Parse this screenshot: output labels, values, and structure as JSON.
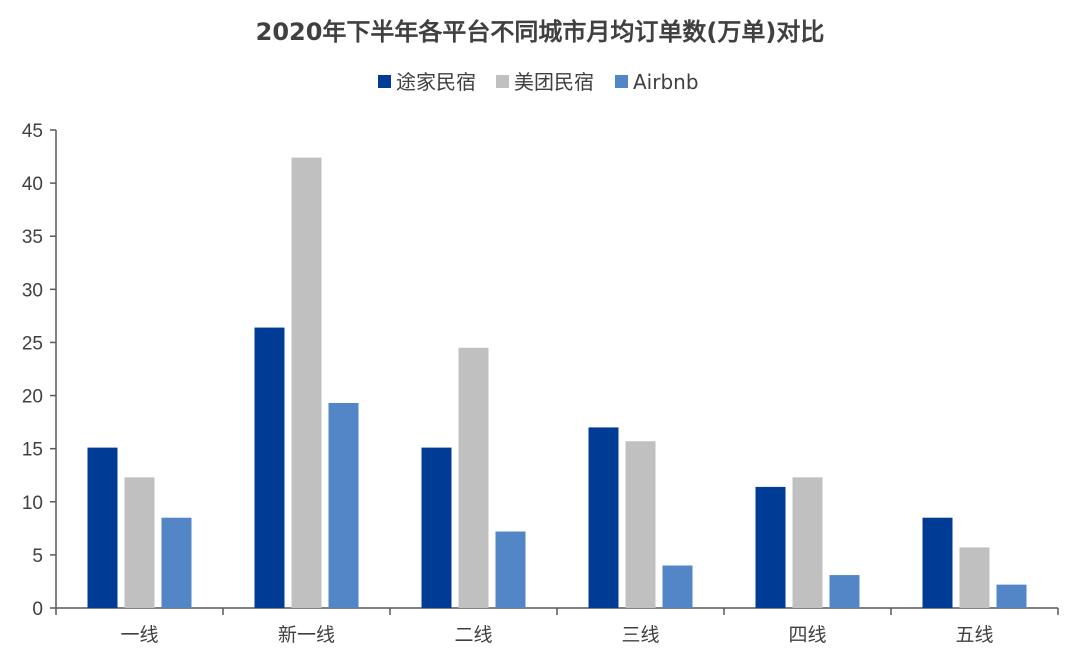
{
  "chart_data": {
    "type": "bar",
    "title": "2020年下半年各平台不同城市月均订单数(万单)对比",
    "xlabel": "",
    "ylabel": "",
    "categories": [
      "一线",
      "新一线",
      "二线",
      "三线",
      "四线",
      "五线"
    ],
    "series": [
      {
        "name": "途家民宿",
        "color": "#003C96",
        "values": [
          15.1,
          26.4,
          15.1,
          17.0,
          11.4,
          8.5
        ]
      },
      {
        "name": "美团民宿",
        "color": "#C0C0C0",
        "values": [
          12.3,
          42.4,
          24.5,
          15.7,
          12.3,
          5.7
        ]
      },
      {
        "name": "Airbnb",
        "color": "#5286C7",
        "values": [
          8.5,
          19.3,
          7.2,
          4.0,
          3.1,
          2.2
        ]
      }
    ],
    "ylim": [
      0,
      45
    ],
    "yticks": [
      0,
      5,
      10,
      15,
      20,
      25,
      30,
      35,
      40,
      45
    ],
    "legend_position": "top-center",
    "grid": false
  }
}
